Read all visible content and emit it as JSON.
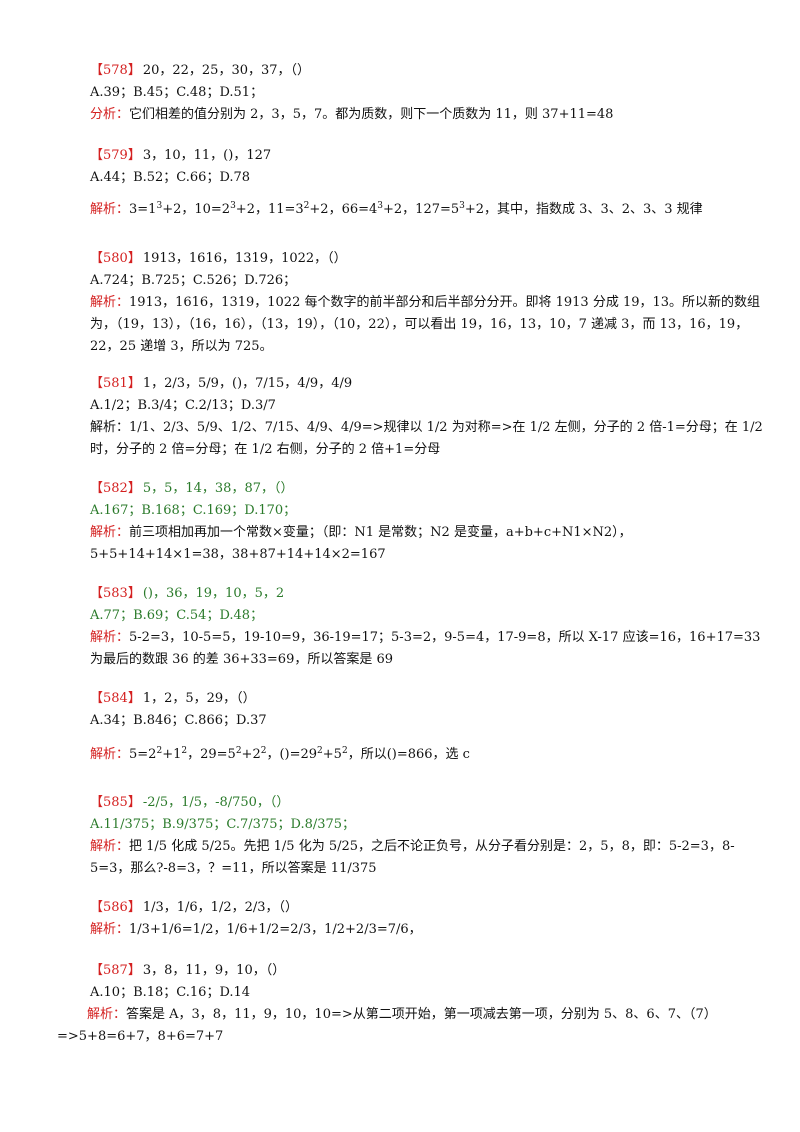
{
  "problems": [
    {
      "number": "【578】",
      "sequence": "20，22，25，30，37，（）",
      "options": "A.39；B.45；C.48；D.51；",
      "label": "分析：",
      "analysis": "它们相差的值分别为 2，3，5，7。都为质数，则下一个质数为 11，则 37+11=48"
    },
    {
      "number": "【579】",
      "sequence": "3，10，11，()，127",
      "options": "A.44；B.52；C.66；D.78",
      "label": "解析：",
      "analysis_parts": [
        "3=1",
        "3",
        "+2，10=2",
        "3",
        "+2，11=3",
        "2",
        "+2，66=4",
        "3",
        "+2，127=5",
        "3",
        "+2，其中，指数成 3、3、2、3、3 规律"
      ]
    },
    {
      "number": "【580】",
      "sequence": "1913，1616，1319，1022，（）",
      "options": "A.724；B.725；C.526；D.726；",
      "label": "解析：",
      "analysis": "1913，1616，1319，1022 每个数字的前半部分和后半部分分开。即将 1913 分成 19，13。所以新的数组为，（19，13），（16，16），（13，19），（10，22），可以看出 19，16，13，10，7 递减 3，而 13，16，19，22，25 递增 3，所以为 725。"
    },
    {
      "number": "【581】",
      "sequence": "1，2/3，5/9，()，7/15，4/9，4/9",
      "options": "A.1/2；B.3/4；C.2/13；D.3/7",
      "label": "解析：",
      "analysis": "1/1、2/3、5/9、1/2、7/15、4/9、4/9=>规律以 1/2 为对称=>在 1/2 左侧，分子的 2 倍-1=分母；在 1/2 时，分子的 2 倍=分母；在 1/2 右侧，分子的 2 倍+1=分母"
    },
    {
      "number": "【582】",
      "sequence": "5，5，14，38，87，（）",
      "options": "A.167；B.168；C.169；D.170；",
      "label": "解析：",
      "analysis": "前三项相加再加一个常数×变量；（即：N1 是常数；N2 是变量，a+b+c+N1×N2），5+5+14+14×1=38，38+87+14+14×2=167"
    },
    {
      "number": "【583】",
      "sequence": "()，36，19，10，5，2",
      "options": "A.77；B.69；C.54；D.48；",
      "label": "解析：",
      "analysis": "5-2=3，10-5=5，19-10=9，36-19=17；5-3=2，9-5=4，17-9=8，所以 X-17 应该=16，16+17=33 为最后的数跟 36 的差 36+33=69，所以答案是 69"
    },
    {
      "number": "【584】",
      "sequence": "1，2，5，29，（）",
      "options": "A.34；B.846；C.866；D.37",
      "label": "解析：",
      "analysis_parts": [
        "5=2",
        "2",
        "+1",
        "2",
        "，29=5",
        "2",
        "+2",
        "2",
        "，()=29",
        "2",
        "+5",
        "2",
        "，所以()=866，选 c"
      ]
    },
    {
      "number": "【585】",
      "sequence": "-2/5，1/5，-8/750，（）",
      "options": "A.11/375；B.9/375；C.7/375；D.8/375；",
      "label": "解析：",
      "analysis": "把 1/5 化成 5/25。先把 1/5 化为 5/25，之后不论正负号，从分子看分别是：2，5，8，即：5-2=3，8-5=3，那么?-8=3，？=11，所以答案是 11/375"
    },
    {
      "number": "【586】",
      "sequence": "1/3，1/6，1/2，2/3，（）",
      "label": "解析：",
      "analysis": "1/3+1/6=1/2，1/6+1/2=2/3，1/2+2/3=7/6，"
    },
    {
      "number": "【587】",
      "sequence": "3，8，11，9，10，（）",
      "options": "A.10；B.18；C.16；D.14",
      "label": "解析：",
      "analysis": "答案是 A，3，8，11，9，10，10=>从第二项开始，第一项减去第一项，分别为 5、8、6、7、（7）=>5+8=6+7，8+6=7+7"
    }
  ],
  "colors": {
    "number": "#d42020",
    "label": "#d42020",
    "green_text": "#2a7a2a",
    "body_text": "#111111"
  }
}
